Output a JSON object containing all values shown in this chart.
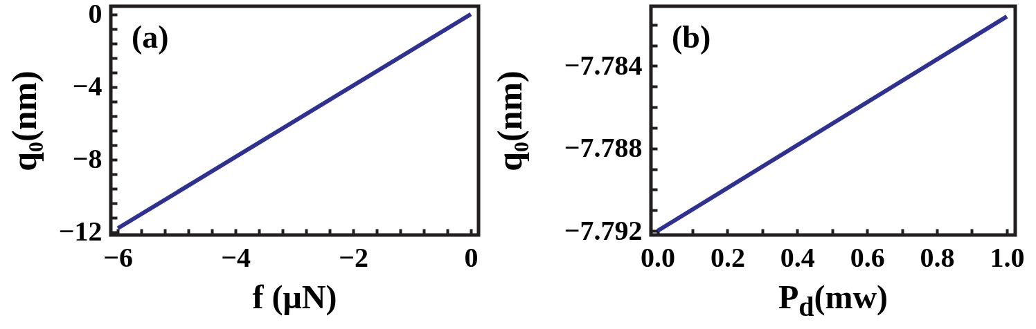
{
  "chart_data": [
    {
      "type": "line",
      "xlabel": "f (μN)",
      "ylabel": "q₀(nm)",
      "annotations": [
        "(a)"
      ],
      "x": [
        -6,
        0
      ],
      "series": [
        {
          "color": "#2e3192",
          "values": [
            -11.8,
            0
          ]
        }
      ],
      "xlim": [
        -6.12,
        0.13
      ],
      "ylim": [
        -12.17,
        0.44
      ],
      "xticks": [
        -6,
        {
          "value": -5.6,
          "label": null
        },
        {
          "value": -5.2,
          "label": null
        },
        {
          "value": -4.8,
          "label": null
        },
        {
          "value": -4.4,
          "label": null
        },
        -4,
        {
          "value": -3.6,
          "label": null
        },
        {
          "value": -3.2,
          "label": null
        },
        {
          "value": -2.8,
          "label": null
        },
        {
          "value": -2.4,
          "label": null
        },
        -2,
        {
          "value": -1.6,
          "label": null
        },
        {
          "value": -1.2,
          "label": null
        },
        {
          "value": -0.8,
          "label": null
        },
        {
          "value": -0.4,
          "label": null
        },
        0
      ],
      "yticks": [
        0,
        {
          "value": -0.8,
          "label": null
        },
        {
          "value": -1.6,
          "label": null
        },
        {
          "value": -2.4,
          "label": null
        },
        {
          "value": -3.2,
          "label": null
        },
        -4,
        {
          "value": -4.8,
          "label": null
        },
        {
          "value": -5.6,
          "label": null
        },
        {
          "value": -6.4,
          "label": null
        },
        {
          "value": -7.2,
          "label": null
        },
        -8,
        {
          "value": -8.8,
          "label": null
        },
        {
          "value": -9.6,
          "label": null
        },
        {
          "value": -10.4,
          "label": null
        },
        {
          "value": -11.2,
          "label": null
        },
        -12
      ],
      "grid": false
    },
    {
      "type": "line",
      "xlabel": "P$_{d}$(mw)",
      "ylabel": "q₀(nm)",
      "annotations": [
        "(b)"
      ],
      "x": [
        0,
        1
      ],
      "series": [
        {
          "color": "#2e3192",
          "values": [
            -7.792,
            -7.7816
          ]
        }
      ],
      "xlim": [
        -0.019,
        1.024
      ],
      "ylim": [
        -7.7922,
        -7.7811
      ],
      "xticks": [
        {
          "value": 0,
          "label": "0.0"
        },
        {
          "value": 0.1,
          "label": null
        },
        0.2,
        {
          "value": 0.3,
          "label": null
        },
        0.4,
        {
          "value": 0.5,
          "label": null
        },
        0.6,
        {
          "value": 0.7,
          "label": null
        },
        0.8,
        {
          "value": 0.9,
          "label": null
        },
        {
          "value": 1,
          "label": "1.0"
        }
      ],
      "yticks": [
        {
          "value": -7.782,
          "label": null
        },
        {
          "value": -7.783,
          "label": null
        },
        -7.784,
        {
          "value": -7.785,
          "label": null
        },
        {
          "value": -7.786,
          "label": null
        },
        {
          "value": -7.787,
          "label": null
        },
        -7.788,
        {
          "value": -7.789,
          "label": null
        },
        {
          "value": -7.79,
          "label": null
        },
        {
          "value": -7.791,
          "label": null
        },
        -7.792
      ],
      "grid": false
    }
  ]
}
